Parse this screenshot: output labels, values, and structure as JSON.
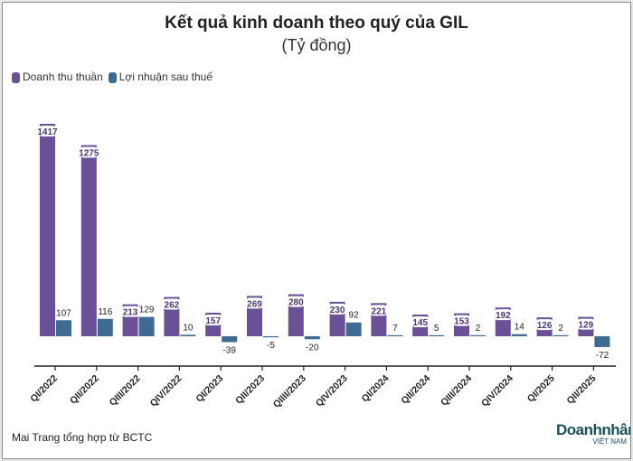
{
  "chart_data": {
    "type": "bar",
    "title": "Kết quả kinh doanh theo quý của GIL",
    "subtitle": "(Tỷ đồng)",
    "xlabel": "",
    "ylabel": "",
    "categories": [
      "QI/2022",
      "QII/2022",
      "QIII/2022",
      "QIV/2022",
      "QI/2023",
      "QII/2023",
      "QIIII/2023",
      "QIV/2023",
      "QI/2024",
      "QII/2024",
      "QIII/2024",
      "QIV/2024",
      "QI/2025",
      "QII/2025"
    ],
    "series": [
      {
        "name": "Doanh thu thuần",
        "color": "#6a5097",
        "values": [
          1417,
          1275,
          213,
          262,
          157,
          269,
          280,
          230,
          221,
          145,
          153,
          192,
          126,
          129
        ]
      },
      {
        "name": "Lợi nhuận sau thuế",
        "color": "#3d6b91",
        "values": [
          107,
          116,
          129,
          10,
          -39,
          -5,
          -20,
          92,
          7,
          5,
          2,
          14,
          2,
          -72
        ]
      }
    ],
    "legend": "top-left",
    "grid": false
  },
  "footer": {
    "source": "Mai Trang tổng hợp từ BCTC",
    "logo_line1": "Doanhnhân",
    "logo_line2": "VIỆT NAM"
  }
}
